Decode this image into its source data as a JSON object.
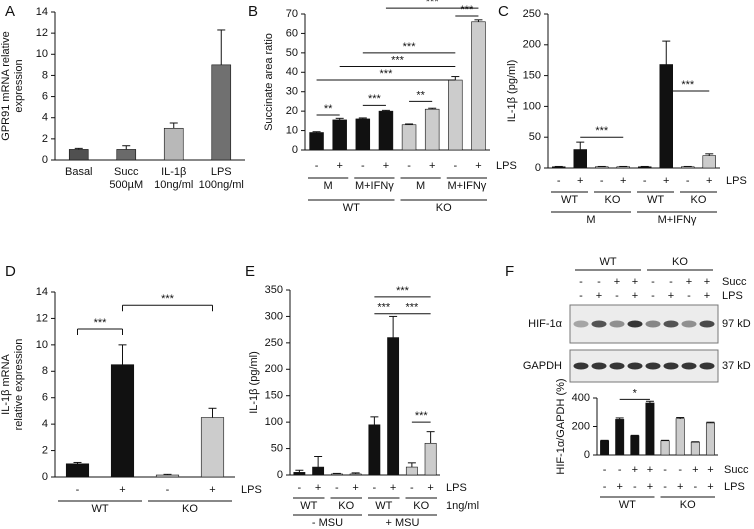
{
  "chart_data": [
    {
      "type": "bar",
      "panel": "A",
      "ylabel": [
        "GPR91 mRNA relative",
        "expression"
      ],
      "ylim": [
        0,
        14
      ],
      "yticks": [
        0,
        2,
        4,
        6,
        8,
        10,
        12,
        14
      ],
      "rows": [
        [
          "Basal",
          "Succ",
          "IL-1β",
          "LPS"
        ],
        [
          null,
          "500µM",
          "10ng/ml",
          "100ng/ml"
        ]
      ],
      "values": [
        1,
        1,
        3,
        9
      ],
      "errors": [
        0.1,
        0.35,
        0.5,
        3.3
      ],
      "colors": [
        "#505050",
        "#6a6a6a",
        "#b8b8b8",
        "#707070"
      ],
      "significance": []
    },
    {
      "type": "bar",
      "panel": "B",
      "ylabel": [
        "Succinate area ratio"
      ],
      "ylim": [
        0,
        70
      ],
      "yticks": [
        0,
        10,
        20,
        30,
        40,
        50,
        60,
        70
      ],
      "rows": [
        [
          "-",
          "+",
          "-",
          "+",
          "-",
          "+",
          "-",
          "+"
        ],
        [
          "M",
          "M+IFNγ",
          "M",
          "M+IFNγ"
        ],
        [
          "WT",
          "KO"
        ]
      ],
      "row_titles": [
        "LPS"
      ],
      "values": [
        9,
        15.5,
        16,
        20,
        13,
        21,
        36,
        66
      ],
      "errors": [
        0.4,
        0.8,
        0.5,
        0.4,
        0.4,
        0.5,
        1.8,
        1
      ],
      "colors": [
        "#111111",
        "#111111",
        "#111111",
        "#111111",
        "#cccccc",
        "#cccccc",
        "#cccccc",
        "#cccccc"
      ],
      "significance": [
        "**",
        "***",
        "**",
        "***",
        "***",
        "***",
        "***",
        "***"
      ]
    },
    {
      "type": "bar",
      "panel": "C",
      "ylabel": [
        "IL-1β (pg/ml)"
      ],
      "ylim": [
        0,
        250
      ],
      "yticks": [
        0,
        50,
        100,
        150,
        200,
        250
      ],
      "rows": [
        [
          "-",
          "+",
          "-",
          "+",
          "-",
          "+",
          "-",
          "+"
        ],
        [
          "WT",
          "KO",
          "WT",
          "KO"
        ],
        [
          "M",
          "M+IFNγ"
        ]
      ],
      "row_titles": [
        "LPS"
      ],
      "values": [
        2,
        30,
        2,
        2,
        2,
        168,
        2,
        20
      ],
      "errors": [
        0.5,
        12,
        0.5,
        0.5,
        0.5,
        38,
        0.5,
        3
      ],
      "colors": [
        "#111111",
        "#111111",
        "#cccccc",
        "#cccccc",
        "#111111",
        "#111111",
        "#cccccc",
        "#cccccc"
      ],
      "significance": [
        "***",
        "***"
      ]
    },
    {
      "type": "bar",
      "panel": "D",
      "ylabel": [
        "IL-1β mRNA",
        "relative expression"
      ],
      "ylim": [
        0,
        14
      ],
      "yticks": [
        0,
        2,
        4,
        6,
        8,
        10,
        12,
        14
      ],
      "rows": [
        [
          "-",
          "+",
          "-",
          "+"
        ],
        [
          "WT",
          "KO"
        ]
      ],
      "row_titles": [
        "LPS"
      ],
      "values": [
        1,
        8.5,
        0.15,
        4.5
      ],
      "errors": [
        0.1,
        1.5,
        0.05,
        0.7
      ],
      "colors": [
        "#111111",
        "#111111",
        "#cccccc",
        "#cccccc"
      ],
      "significance": [
        "***",
        "***"
      ]
    },
    {
      "type": "bar",
      "panel": "E",
      "ylabel": [
        "IL-1β (pg/ml)"
      ],
      "ylim": [
        0,
        350
      ],
      "yticks": [
        0,
        50,
        100,
        150,
        200,
        250,
        300,
        350
      ],
      "rows": [
        [
          "-",
          "+",
          "-",
          "+",
          "-",
          "+",
          "-",
          "+"
        ],
        [
          "WT",
          "KO",
          "WT",
          "KO"
        ],
        [
          "- MSU",
          "+ MSU"
        ]
      ],
      "row_titles": [
        "LPS",
        "1ng/ml"
      ],
      "values": [
        5,
        15,
        2,
        2,
        95,
        260,
        15,
        60
      ],
      "errors": [
        4,
        20,
        1,
        2,
        15,
        40,
        8,
        22
      ],
      "colors": [
        "#111111",
        "#111111",
        "#cccccc",
        "#cccccc",
        "#111111",
        "#111111",
        "#cccccc",
        "#cccccc"
      ],
      "significance": [
        "***",
        "***",
        "***",
        "***"
      ]
    },
    {
      "type": "bar",
      "panel": "F",
      "ylabel": [
        "HIF-1α/GAPDH (%)"
      ],
      "ylim": [
        0,
        400
      ],
      "yticks": [
        0,
        200,
        400
      ],
      "rows": [
        [
          "-",
          "-",
          "+",
          "+",
          "-",
          "-",
          "+",
          "+"
        ],
        [
          "-",
          "+",
          "-",
          "+",
          "-",
          "+",
          "-",
          "+"
        ],
        [
          "WT",
          "KO"
        ]
      ],
      "row_titles": [
        "Succ",
        "LPS"
      ],
      "values": [
        100,
        250,
        135,
        365,
        100,
        255,
        90,
        225
      ],
      "errors": [
        3,
        10,
        3,
        12,
        3,
        8,
        3,
        5
      ],
      "colors": [
        "#111111",
        "#111111",
        "#111111",
        "#111111",
        "#cccccc",
        "#cccccc",
        "#cccccc",
        "#cccccc"
      ],
      "significance": [
        "*"
      ]
    }
  ],
  "blot": {
    "groups": [
      "WT",
      "KO"
    ],
    "rows": [
      [
        "-",
        "-",
        "+",
        "+",
        "-",
        "-",
        "+",
        "+"
      ],
      [
        "-",
        "+",
        "-",
        "+",
        "-",
        "+",
        "-",
        "+"
      ]
    ],
    "row_titles": [
      "Succ",
      "LPS"
    ],
    "bands": [
      "HIF-1α",
      "GAPDH"
    ],
    "sizes": [
      "97 kD",
      "37 kD"
    ]
  }
}
